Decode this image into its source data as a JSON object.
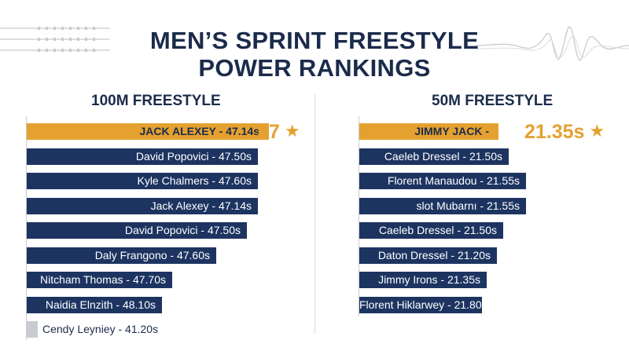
{
  "title_line1": "MEN’S SPRINT FREESTYLE",
  "title_line2": "POWER RANKINGS",
  "colors": {
    "highlight": "#e4a12f",
    "bar": "#1d3461",
    "last_bar": "#c8cbd1",
    "text": "#1b2b4b"
  },
  "icons": {
    "star": "★"
  },
  "chart_data": [
    {
      "type": "bar",
      "orientation": "horizontal",
      "title": "100M FREESTYLE",
      "labels": [
        "JACK ALEXEY - 47.14s",
        "David Popovici - 47.50s",
        "Kyle Chalmers - 47.60s",
        "Jack Alexey - 47.14s",
        "David Popovici - 47.50s",
        "Daly Frangono - 47.60s",
        "Nitcham Thomas - 47.70s",
        "Naidia Elnzith - 48.10s",
        "Cendy Leyniey - 41.20s"
      ],
      "bar_lengths": [
        1.0,
        0.954,
        0.954,
        0.954,
        0.909,
        0.784,
        0.602,
        0.557,
        0.045
      ],
      "highlight_index": 0,
      "callout": "47"
    },
    {
      "type": "bar",
      "orientation": "horizontal",
      "title": "50M FREESTYLE",
      "labels": [
        "JIMMY JACK -",
        "Caeleb Dressel - 21.50s",
        "Florent Manaudou - 21.55s",
        "slot Mubarnı - 21.55s",
        "Caeleb Dressel - 21.50s",
        "Daton Dressel - 21.20s",
        "Jimmy  Irons - 21.35s",
        "Florent Hiklarwey - 21.80s"
      ],
      "bar_lengths": [
        1.0,
        1.072,
        1.197,
        1.197,
        1.032,
        0.988,
        0.916,
        0.884
      ],
      "highlight_index": 0,
      "callout": "21.35s"
    }
  ]
}
